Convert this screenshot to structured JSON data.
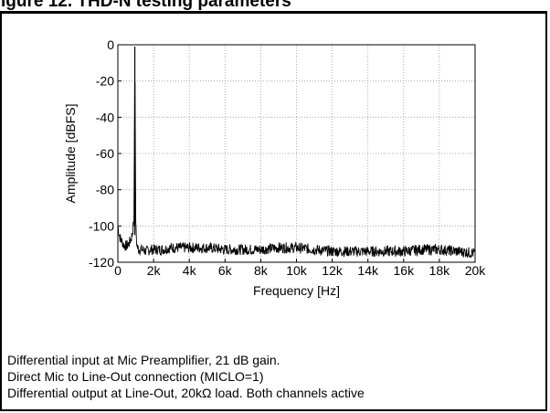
{
  "figure_title": "igure 12. THD-N testing parameters",
  "chart_data": {
    "type": "line",
    "title": "",
    "xlabel": "Frequency [Hz]",
    "ylabel": "Amplitude [dBFS]",
    "xlim": [
      0,
      20000
    ],
    "ylim": [
      -120,
      0
    ],
    "x_ticks": [
      0,
      2000,
      4000,
      6000,
      8000,
      10000,
      12000,
      14000,
      16000,
      18000,
      20000
    ],
    "x_tick_labels": [
      "0",
      "2k",
      "4k",
      "6k",
      "8k",
      "10k",
      "12k",
      "14k",
      "16k",
      "18k",
      "20k"
    ],
    "y_ticks": [
      0,
      -20,
      -40,
      -60,
      -80,
      -100,
      -120
    ],
    "y_tick_labels": [
      "0",
      "-20",
      "-40",
      "-60",
      "-80",
      "-100",
      "-120"
    ],
    "grid": true,
    "line_color": "#000000",
    "series": [
      {
        "values_note": "",
        "x": [
          0,
          100,
          200,
          300,
          400,
          500,
          600,
          700,
          800,
          900,
          950,
          1000,
          1050,
          1100,
          1200,
          1400,
          1600,
          1800,
          2000,
          2500,
          3000,
          3500,
          4000,
          5000,
          6000,
          7000,
          8000,
          9000,
          10000,
          11000,
          12000,
          13000,
          14000,
          15000,
          16000,
          17000,
          18000,
          19000,
          20000
        ],
        "y": [
          -100,
          -106,
          -108,
          -110,
          -111,
          -111,
          -110,
          -108,
          -105,
          -97,
          -1,
          -98,
          -109,
          -112,
          -113,
          -113,
          -114,
          -113,
          -113,
          -113,
          -112,
          -112,
          -112,
          -112,
          -113,
          -113,
          -113,
          -112,
          -112,
          -113,
          -114,
          -114,
          -114,
          -114,
          -114,
          -113,
          -113,
          -114,
          -115
        ]
      }
    ]
  },
  "notes": [
    "Differential input at Mic Preamplifier, 21 dB gain.",
    "Direct Mic to Line-Out connection (MICLO=1)",
    "Differential output at Line-Out, 20kΩ load. Both channels active"
  ]
}
